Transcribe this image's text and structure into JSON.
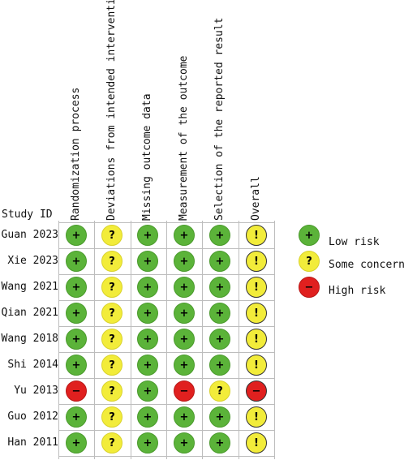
{
  "colors": {
    "low": "#5bb339",
    "some": "#f2ec3a",
    "high": "#e0201f",
    "grid": "#bdbdbd"
  },
  "study_id_header": "Study ID",
  "domains": [
    "Randomization process",
    "Deviations from intended interventions",
    "Missing outcome data",
    "Measurement of the outcome",
    "Selection of the reported result",
    "Overall"
  ],
  "studies": [
    {
      "id": "Guan 2023",
      "judgements": [
        "low",
        "some",
        "low",
        "low",
        "low",
        "some"
      ]
    },
    {
      "id": "Xie 2023",
      "judgements": [
        "low",
        "some",
        "low",
        "low",
        "low",
        "some"
      ]
    },
    {
      "id": "Wang 2021",
      "judgements": [
        "low",
        "some",
        "low",
        "low",
        "low",
        "some"
      ]
    },
    {
      "id": "Qian 2021",
      "judgements": [
        "low",
        "some",
        "low",
        "low",
        "low",
        "some"
      ]
    },
    {
      "id": "Wang 2018",
      "judgements": [
        "low",
        "some",
        "low",
        "low",
        "low",
        "some"
      ]
    },
    {
      "id": "Shi 2014",
      "judgements": [
        "low",
        "some",
        "low",
        "low",
        "low",
        "some"
      ]
    },
    {
      "id": "Yu 2013",
      "judgements": [
        "high",
        "some",
        "low",
        "high",
        "some",
        "high"
      ]
    },
    {
      "id": "Guo 2012",
      "judgements": [
        "low",
        "some",
        "low",
        "low",
        "low",
        "some"
      ]
    },
    {
      "id": "Han 2011",
      "judgements": [
        "low",
        "some",
        "low",
        "low",
        "low",
        "some"
      ]
    }
  ],
  "symbols": {
    "low": "+",
    "some_domain": "?",
    "some_overall": "!",
    "high": "−"
  },
  "legend": [
    {
      "level": "low",
      "label": "Low risk",
      "symbol": "+"
    },
    {
      "level": "some",
      "label": "Some concerns",
      "symbol": "?"
    },
    {
      "level": "high",
      "label": "High risk",
      "symbol": "−"
    }
  ]
}
